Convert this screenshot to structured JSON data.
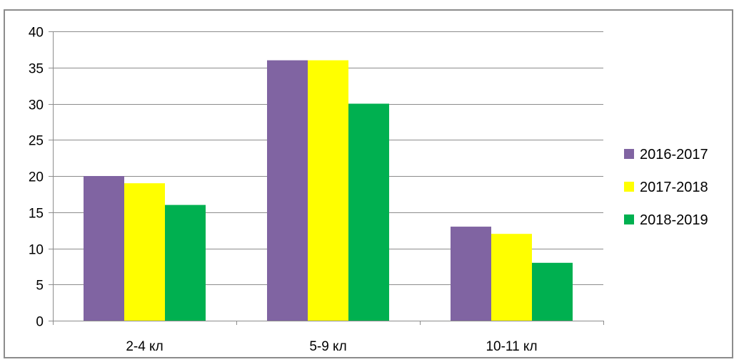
{
  "chart_data": {
    "type": "bar",
    "categories": [
      "2-4 кл",
      "5-9 кл",
      "10-11 кл"
    ],
    "series": [
      {
        "name": "2016-2017",
        "color": "#8064a2",
        "values": [
          20,
          36,
          13
        ]
      },
      {
        "name": "2017-2018",
        "color": "#ffff00",
        "values": [
          19,
          36,
          12
        ]
      },
      {
        "name": "2018-2019",
        "color": "#00b050",
        "values": [
          16,
          30,
          8
        ]
      }
    ],
    "ylim": [
      0,
      40
    ],
    "yticks": [
      0,
      5,
      10,
      15,
      20,
      25,
      30,
      35,
      40
    ],
    "grid": true,
    "legend_position": "right",
    "title": "",
    "xlabel": "",
    "ylabel": ""
  }
}
